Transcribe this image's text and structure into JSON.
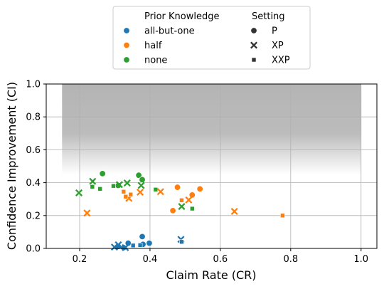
{
  "chart_data": {
    "type": "scatter",
    "xlabel": "Claim Rate (CR)",
    "ylabel": "Confidence Improvement (CI)",
    "xlim": [
      0.105,
      1.045
    ],
    "ylim": [
      0.0,
      1.0
    ],
    "xticks": [
      "0.2",
      "0.4",
      "0.6",
      "0.8",
      "1.0"
    ],
    "yticks": [
      "0.0",
      "0.2",
      "0.4",
      "0.6",
      "0.8",
      "1.0"
    ],
    "grid": true,
    "shaded_region": {
      "x": [
        0.15,
        1.0
      ],
      "y_from": 0.45,
      "y_to": 1.0,
      "color": "#b0b0b0"
    },
    "legend": {
      "placement": "top-center",
      "hue_title": "Prior Knowledge",
      "hue_entries": [
        {
          "label": "all-but-one",
          "color": "#1f77b4"
        },
        {
          "label": "half",
          "color": "#ff7f0e"
        },
        {
          "label": "none",
          "color": "#2ca02c"
        }
      ],
      "style_title": "Setting",
      "style_entries": [
        {
          "label": "P",
          "marker": "circle"
        },
        {
          "label": "XP",
          "marker": "x"
        },
        {
          "label": "XXP",
          "marker": "square"
        }
      ]
    },
    "points": [
      {
        "x": 0.265,
        "y": 0.455,
        "group": "none",
        "setting": "P"
      },
      {
        "x": 0.31,
        "y": 0.383,
        "group": "none",
        "setting": "P"
      },
      {
        "x": 0.368,
        "y": 0.445,
        "group": "none",
        "setting": "P"
      },
      {
        "x": 0.378,
        "y": 0.418,
        "group": "none",
        "setting": "P"
      },
      {
        "x": 0.198,
        "y": 0.338,
        "group": "none",
        "setting": "XP"
      },
      {
        "x": 0.237,
        "y": 0.408,
        "group": "none",
        "setting": "XP"
      },
      {
        "x": 0.313,
        "y": 0.388,
        "group": "none",
        "setting": "XP"
      },
      {
        "x": 0.335,
        "y": 0.398,
        "group": "none",
        "setting": "XP"
      },
      {
        "x": 0.375,
        "y": 0.383,
        "group": "none",
        "setting": "XP"
      },
      {
        "x": 0.49,
        "y": 0.255,
        "group": "none",
        "setting": "XP"
      },
      {
        "x": 0.236,
        "y": 0.375,
        "group": "none",
        "setting": "XXP"
      },
      {
        "x": 0.258,
        "y": 0.362,
        "group": "none",
        "setting": "XXP"
      },
      {
        "x": 0.296,
        "y": 0.38,
        "group": "none",
        "setting": "XXP"
      },
      {
        "x": 0.416,
        "y": 0.358,
        "group": "none",
        "setting": "XXP"
      },
      {
        "x": 0.52,
        "y": 0.242,
        "group": "none",
        "setting": "XXP"
      },
      {
        "x": 0.465,
        "y": 0.23,
        "group": "half",
        "setting": "P"
      },
      {
        "x": 0.478,
        "y": 0.372,
        "group": "half",
        "setting": "P"
      },
      {
        "x": 0.52,
        "y": 0.325,
        "group": "half",
        "setting": "P"
      },
      {
        "x": 0.542,
        "y": 0.362,
        "group": "half",
        "setting": "P"
      },
      {
        "x": 0.221,
        "y": 0.215,
        "group": "half",
        "setting": "XP"
      },
      {
        "x": 0.34,
        "y": 0.305,
        "group": "half",
        "setting": "XP"
      },
      {
        "x": 0.372,
        "y": 0.342,
        "group": "half",
        "setting": "XP"
      },
      {
        "x": 0.43,
        "y": 0.345,
        "group": "half",
        "setting": "XP"
      },
      {
        "x": 0.51,
        "y": 0.295,
        "group": "half",
        "setting": "XP"
      },
      {
        "x": 0.64,
        "y": 0.225,
        "group": "half",
        "setting": "XP"
      },
      {
        "x": 0.325,
        "y": 0.345,
        "group": "half",
        "setting": "XXP"
      },
      {
        "x": 0.331,
        "y": 0.315,
        "group": "half",
        "setting": "XXP"
      },
      {
        "x": 0.345,
        "y": 0.328,
        "group": "half",
        "setting": "XXP"
      },
      {
        "x": 0.49,
        "y": 0.293,
        "group": "half",
        "setting": "XXP"
      },
      {
        "x": 0.777,
        "y": 0.2,
        "group": "half",
        "setting": "XXP"
      },
      {
        "x": 0.31,
        "y": 0.012,
        "group": "all-but-one",
        "setting": "P"
      },
      {
        "x": 0.325,
        "y": 0.005,
        "group": "all-but-one",
        "setting": "P"
      },
      {
        "x": 0.338,
        "y": 0.032,
        "group": "all-but-one",
        "setting": "P"
      },
      {
        "x": 0.378,
        "y": 0.072,
        "group": "all-but-one",
        "setting": "P"
      },
      {
        "x": 0.38,
        "y": 0.025,
        "group": "all-but-one",
        "setting": "P"
      },
      {
        "x": 0.398,
        "y": 0.032,
        "group": "all-but-one",
        "setting": "P"
      },
      {
        "x": 0.299,
        "y": 0.008,
        "group": "all-but-one",
        "setting": "XP"
      },
      {
        "x": 0.31,
        "y": 0.022,
        "group": "all-but-one",
        "setting": "XP"
      },
      {
        "x": 0.33,
        "y": 0.005,
        "group": "all-but-one",
        "setting": "XP"
      },
      {
        "x": 0.488,
        "y": 0.055,
        "group": "all-but-one",
        "setting": "XP"
      },
      {
        "x": 0.352,
        "y": 0.018,
        "group": "all-but-one",
        "setting": "XXP"
      },
      {
        "x": 0.372,
        "y": 0.02,
        "group": "all-but-one",
        "setting": "XXP"
      },
      {
        "x": 0.49,
        "y": 0.04,
        "group": "all-but-one",
        "setting": "XXP"
      }
    ]
  }
}
